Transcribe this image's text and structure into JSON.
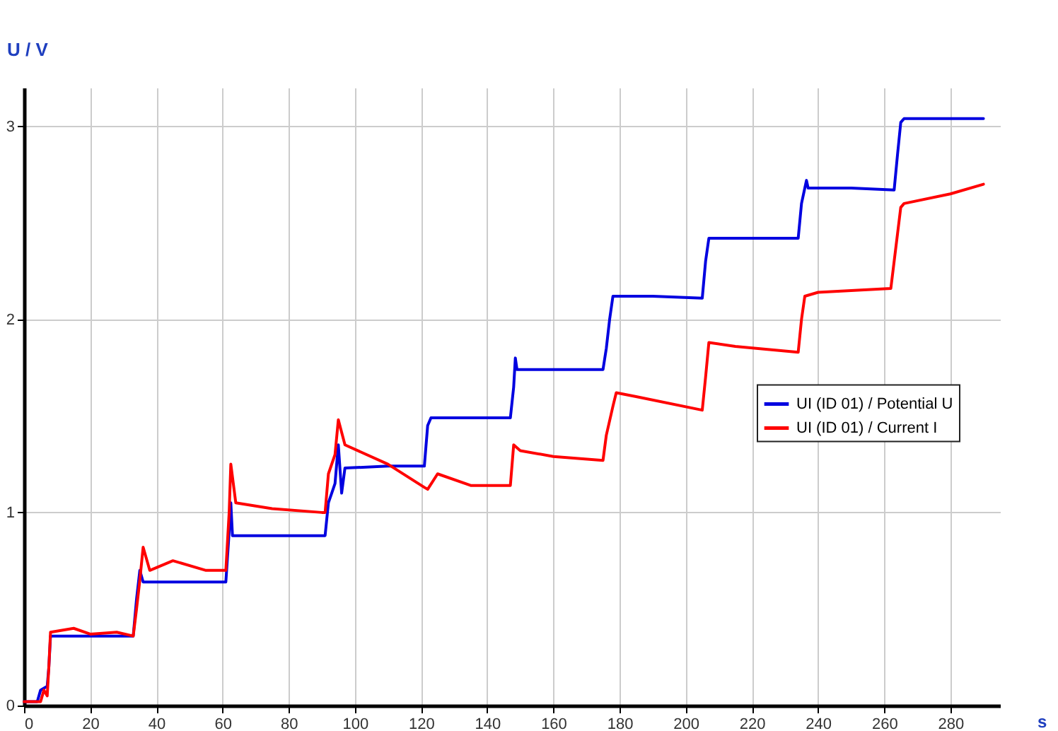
{
  "chart_data": {
    "type": "line",
    "xlabel": "s",
    "ylabel": "U / V",
    "xlim": [
      0,
      295
    ],
    "ylim": [
      0,
      3.2
    ],
    "xticks": [
      0,
      20,
      40,
      60,
      80,
      100,
      120,
      140,
      160,
      180,
      200,
      220,
      240,
      260,
      280
    ],
    "yticks": [
      0,
      1,
      2,
      3
    ],
    "grid": true,
    "legend": "right",
    "line_style": "solid",
    "marker": "none",
    "series": [
      {
        "name": "UI (ID 01) / Potential U",
        "color": "#0000e0",
        "x": [
          0,
          4,
          5,
          7,
          7.5,
          8,
          20,
          33,
          34,
          35,
          36,
          45,
          61,
          62,
          62.5,
          63,
          75,
          91,
          92,
          93,
          94,
          95,
          96,
          97,
          110,
          121,
          122,
          123,
          135,
          147,
          148,
          148.5,
          149,
          160,
          175,
          176,
          177,
          178,
          190,
          205,
          206,
          207,
          220,
          234,
          235,
          236,
          236.5,
          237,
          250,
          263,
          264,
          265,
          266,
          280,
          290
        ],
        "values": [
          0.02,
          0.02,
          0.08,
          0.1,
          0.2,
          0.36,
          0.36,
          0.36,
          0.55,
          0.7,
          0.64,
          0.64,
          0.64,
          0.9,
          1.05,
          0.88,
          0.88,
          0.88,
          1.05,
          1.1,
          1.15,
          1.35,
          1.1,
          1.23,
          1.24,
          1.24,
          1.45,
          1.49,
          1.49,
          1.49,
          1.65,
          1.8,
          1.74,
          1.74,
          1.74,
          1.85,
          2.0,
          2.12,
          2.12,
          2.11,
          2.3,
          2.42,
          2.42,
          2.42,
          2.6,
          2.68,
          2.72,
          2.68,
          2.68,
          2.67,
          2.85,
          3.02,
          3.04,
          3.04,
          3.04
        ]
      },
      {
        "name": "UI (ID 01) / Current I",
        "color": "#ff0000",
        "x": [
          0,
          5,
          6,
          7,
          7.5,
          8,
          15,
          20,
          28,
          33,
          34,
          35,
          36,
          38,
          45,
          55,
          61,
          62,
          62.5,
          64,
          75,
          90,
          91,
          92,
          94,
          95,
          97,
          110,
          121,
          122,
          125,
          135,
          146,
          147,
          148,
          150,
          160,
          175,
          176,
          178,
          179,
          185,
          205,
          206,
          207,
          215,
          234,
          235,
          236,
          240,
          262,
          263,
          265,
          266,
          280,
          290
        ],
        "values": [
          0.02,
          0.02,
          0.08,
          0.05,
          0.2,
          0.38,
          0.4,
          0.37,
          0.38,
          0.36,
          0.5,
          0.65,
          0.82,
          0.7,
          0.75,
          0.7,
          0.7,
          1.0,
          1.25,
          1.05,
          1.02,
          1.0,
          1.0,
          1.2,
          1.3,
          1.48,
          1.35,
          1.25,
          1.13,
          1.12,
          1.2,
          1.14,
          1.14,
          1.14,
          1.35,
          1.32,
          1.29,
          1.27,
          1.4,
          1.55,
          1.62,
          1.6,
          1.53,
          1.7,
          1.88,
          1.86,
          1.83,
          2.0,
          2.12,
          2.14,
          2.16,
          2.3,
          2.58,
          2.6,
          2.65,
          2.7
        ]
      }
    ]
  }
}
